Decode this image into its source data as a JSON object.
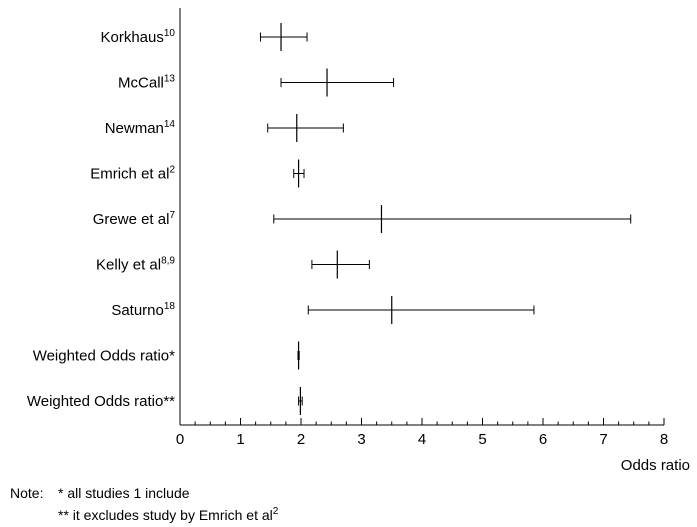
{
  "chart_data": {
    "type": "forest",
    "xlabel": "Odds ratio",
    "xlim": [
      0,
      8
    ],
    "xticks": [
      "0",
      "1",
      "2",
      "3",
      "4",
      "5",
      "6",
      "7",
      "8"
    ],
    "studies": [
      {
        "name": "Korkhaus",
        "ref": "10",
        "or": 1.67,
        "lower": 1.33,
        "upper": 2.1
      },
      {
        "name": "McCall",
        "ref": "13",
        "or": 2.43,
        "lower": 1.67,
        "upper": 3.53
      },
      {
        "name": "Newman",
        "ref": "14",
        "or": 1.93,
        "lower": 1.45,
        "upper": 2.7
      },
      {
        "name": "Emrich et al",
        "ref": "2",
        "or": 1.96,
        "lower": 1.88,
        "upper": 2.05
      },
      {
        "name": "Grewe et al",
        "ref": "7",
        "or": 3.33,
        "lower": 1.55,
        "upper": 7.45
      },
      {
        "name": "Kelly et al",
        "ref": "8,9",
        "or": 2.6,
        "lower": 2.18,
        "upper": 3.13
      },
      {
        "name": "Saturno",
        "ref": "18",
        "or": 3.5,
        "lower": 2.12,
        "upper": 5.85
      },
      {
        "name": "Weighted Odds ratio*",
        "ref": "",
        "or": 1.96,
        "lower": 1.95,
        "upper": 1.97
      },
      {
        "name": "Weighted Odds ratio**",
        "ref": "",
        "or": 1.99,
        "lower": 1.96,
        "upper": 2.02
      }
    ]
  },
  "notes": {
    "line1_prefix": "Note:",
    "line1_text": "* all studies 1 include",
    "line2_text": "** it excludes study by Emrich  et al",
    "line2_sup": "2"
  }
}
